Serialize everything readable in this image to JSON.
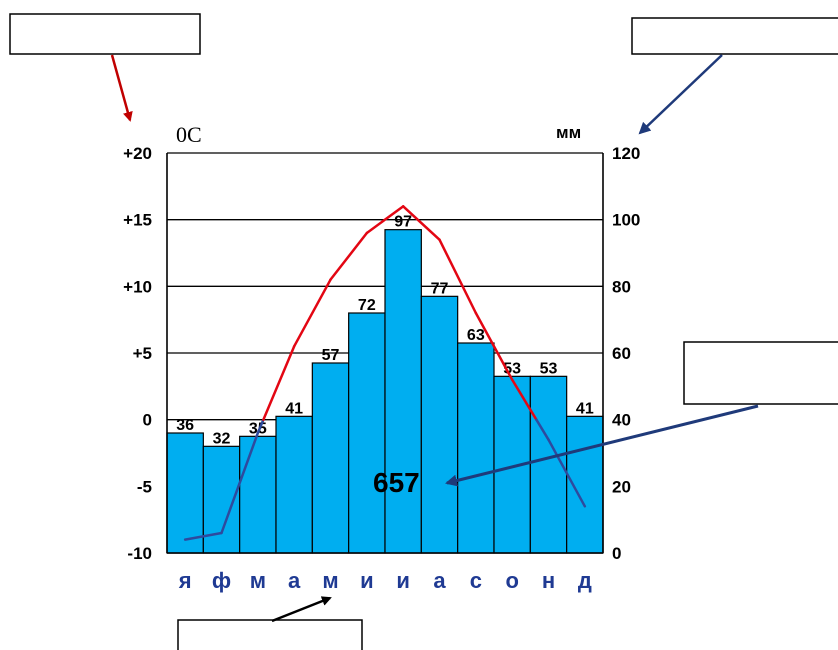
{
  "chart_data": {
    "type": "bar+line",
    "title": "",
    "left_unit": "0C",
    "right_unit": "мм",
    "months": [
      "я",
      "ф",
      "м",
      "а",
      "м",
      "и",
      "и",
      "а",
      "с",
      "о",
      "н",
      "д"
    ],
    "precipitation": {
      "values": [
        36,
        32,
        35,
        41,
        57,
        72,
        97,
        77,
        63,
        53,
        53,
        41
      ],
      "ylim": [
        0,
        120
      ],
      "ticks": [
        "0",
        "20",
        "40",
        "60",
        "80",
        "100",
        "120"
      ],
      "color": "#00aef0"
    },
    "temperature": {
      "values": [
        -9,
        -8.5,
        -1,
        5.5,
        10.5,
        14,
        16,
        13.5,
        8,
        3,
        -1.5,
        -6.5
      ],
      "ylim": [
        -10,
        20
      ],
      "ticks": [
        "-10",
        "-5",
        "0",
        "+5",
        "+10",
        "+15",
        "+20"
      ],
      "warm_color": "#e30613",
      "cold_color": "#2e4a9e"
    },
    "annual_precipitation": "657",
    "grid": true
  },
  "annotations": {
    "box_top_left": "",
    "box_top_right": "",
    "box_mid_right": "",
    "box_bottom": ""
  },
  "colors": {
    "axis": "#000000",
    "month_label": "#1f3a93",
    "arrow_red": "#c00000",
    "arrow_blue": "#1f3a7a",
    "arrow_black": "#000000"
  }
}
